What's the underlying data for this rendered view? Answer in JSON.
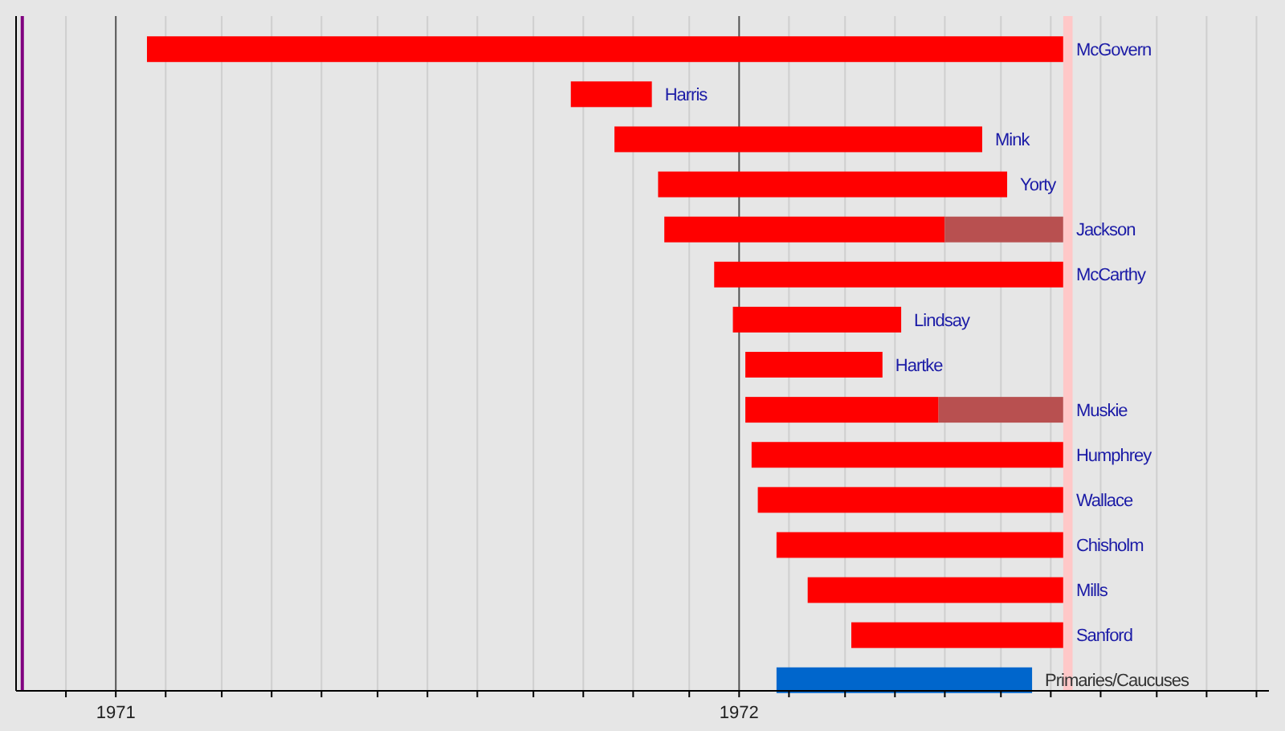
{
  "chart_data": {
    "type": "bar",
    "orientation": "horizontal",
    "categories": [
      "McGovern",
      "Harris",
      "Mink",
      "Yorty",
      "Jackson",
      "McCarthy",
      "Lindsay",
      "Hartke",
      "Muskie",
      "Humphrey",
      "Wallace",
      "Chisholm",
      "Mills",
      "Sanford",
      "Primaries/Caucuses"
    ],
    "series": [
      {
        "color": "#ff0000",
        "base": [
          1971.05,
          1971.73,
          1971.8,
          1971.87,
          1971.88,
          1971.96,
          1971.99,
          1972.01,
          1972.01,
          1972.02,
          1972.03,
          1972.06,
          1972.11,
          1972.18,
          1972.06
        ],
        "colors": [
          "#ff0000",
          "#ff0000",
          "#ff0000",
          "#ff0000",
          "#ff0000",
          "#ff0000",
          "#ff0000",
          "#ff0000",
          "#ff0000",
          "#ff0000",
          "#ff0000",
          "#ff0000",
          "#ff0000",
          "#ff0000",
          "#0066cc"
        ],
        "values": [
          1.47,
          0.13,
          0.59,
          0.56,
          0.45,
          0.56,
          0.27,
          0.22,
          0.31,
          0.5,
          0.49,
          0.46,
          0.41,
          0.34,
          0.41
        ]
      },
      {
        "color": "#b85050",
        "base": [
          null,
          null,
          null,
          null,
          1972.33,
          null,
          null,
          null,
          1972.32,
          null,
          null,
          null,
          null,
          null,
          null
        ],
        "values": [
          null,
          null,
          null,
          null,
          0.19,
          null,
          null,
          null,
          0.2,
          null,
          null,
          null,
          null,
          null,
          null
        ]
      }
    ],
    "xlim": [
      1970.84,
      1972.85
    ],
    "xticks": [
      {
        "value": 1970.92,
        "label": null
      },
      {
        "value": 1971,
        "label": "1971"
      },
      {
        "value": 1971.08,
        "label": null
      },
      {
        "value": 1971.17,
        "label": null
      },
      {
        "value": 1971.25,
        "label": null
      },
      {
        "value": 1971.33,
        "label": null
      },
      {
        "value": 1971.42,
        "label": null
      },
      {
        "value": 1971.5,
        "label": null
      },
      {
        "value": 1971.58,
        "label": null
      },
      {
        "value": 1971.67,
        "label": null
      },
      {
        "value": 1971.75,
        "label": null
      },
      {
        "value": 1971.83,
        "label": null
      },
      {
        "value": 1971.92,
        "label": null
      },
      {
        "value": 1972,
        "label": "1972"
      },
      {
        "value": 1972.08,
        "label": null
      },
      {
        "value": 1972.17,
        "label": null
      },
      {
        "value": 1972.25,
        "label": null
      },
      {
        "value": 1972.33,
        "label": null
      },
      {
        "value": 1972.42,
        "label": null
      },
      {
        "value": 1972.5,
        "label": null
      },
      {
        "value": 1972.58,
        "label": null
      },
      {
        "value": 1972.67,
        "label": null
      },
      {
        "value": 1972.75,
        "label": null
      },
      {
        "value": 1972.83,
        "label": null
      }
    ],
    "grid": "x",
    "ref_lines": [
      {
        "axis": "x",
        "value": 1970.85,
        "color": "#800080"
      }
    ],
    "bands": [
      {
        "axis": "x",
        "from": 1972.52,
        "to": 1972.535,
        "color": "#ffc8c8"
      }
    ]
  }
}
